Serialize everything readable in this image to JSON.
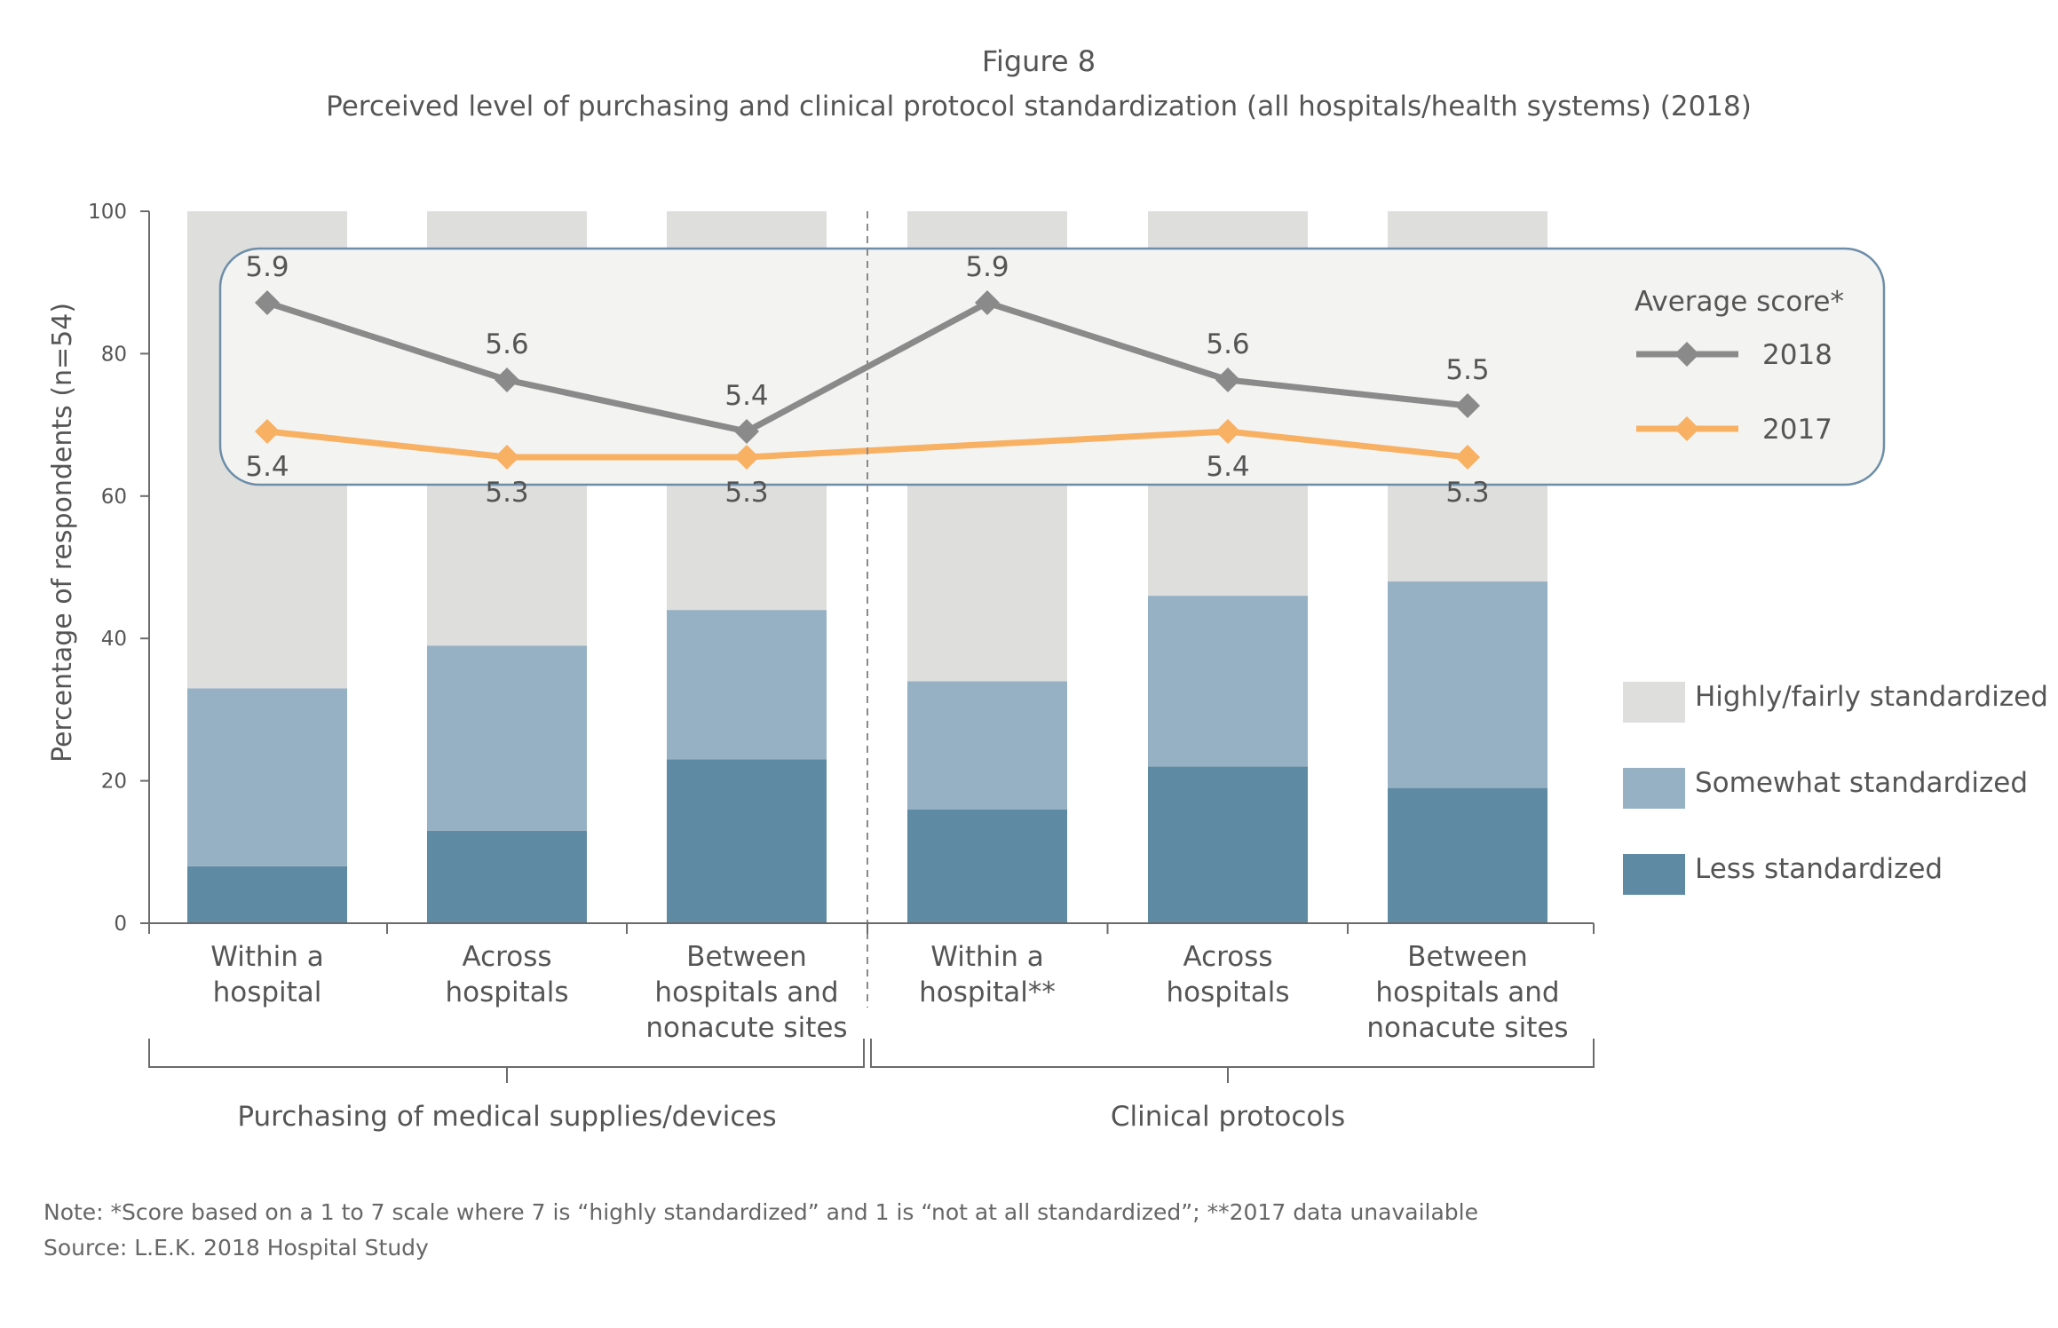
{
  "chart_data": {
    "type": "bar",
    "stacked": true,
    "figure_label": "Figure 8",
    "title": "Perceived level of purchasing and clinical protocol standardization (all hospitals/health systems) (2018)",
    "ylabel": "Percentage of respondents (n=54)",
    "ylim": [
      0,
      100
    ],
    "yticks": [
      "0",
      "20",
      "40",
      "60",
      "80",
      "100"
    ],
    "categories": [
      [
        "Within a",
        "hospital"
      ],
      [
        "Across",
        "hospitals"
      ],
      [
        "Between",
        "hospitals and",
        "nonacute sites"
      ],
      [
        "Within a",
        "hospital**"
      ],
      [
        "Across",
        "hospitals"
      ],
      [
        "Between",
        "hospitals and",
        "nonacute sites"
      ]
    ],
    "groups": [
      {
        "label": "Purchasing of medical supplies/devices",
        "categories": [
          0,
          1,
          2
        ]
      },
      {
        "label": "Clinical protocols",
        "categories": [
          3,
          4,
          5
        ]
      }
    ],
    "series": [
      {
        "name": "Less standardized",
        "color": "#5f8aa3",
        "values": [
          8,
          13,
          23,
          16,
          22,
          19
        ]
      },
      {
        "name": "Somewhat standardized",
        "color": "#97b1c4",
        "values": [
          25,
          26,
          21,
          18,
          24,
          29
        ]
      },
      {
        "name": "Highly/fairly standardized",
        "color": "#dededd",
        "values": [
          67,
          61,
          56,
          66,
          54,
          52
        ]
      }
    ],
    "score_legend_title": "Average score*",
    "score_series": [
      {
        "name": "2018",
        "color": "#8a8a8a",
        "labels": [
          "5.9",
          "5.6",
          "5.4",
          "5.9",
          "5.6",
          "5.5"
        ],
        "values": [
          5.9,
          5.6,
          5.4,
          5.9,
          5.6,
          5.5
        ]
      },
      {
        "name": "2017",
        "color": "#f8b062",
        "labels": [
          "5.4",
          "5.3",
          "5.3",
          null,
          "5.4",
          "5.3"
        ],
        "values": [
          5.4,
          5.3,
          5.3,
          null,
          5.4,
          5.3
        ]
      }
    ],
    "legend_position": "right",
    "grid": false
  },
  "note": "Note: *Score based on a 1 to 7 scale where 7 is “highly standardized” and 1 is “not at all standardized”; **2017 data unavailable",
  "source": "Source: L.E.K. 2018 Hospital Study"
}
